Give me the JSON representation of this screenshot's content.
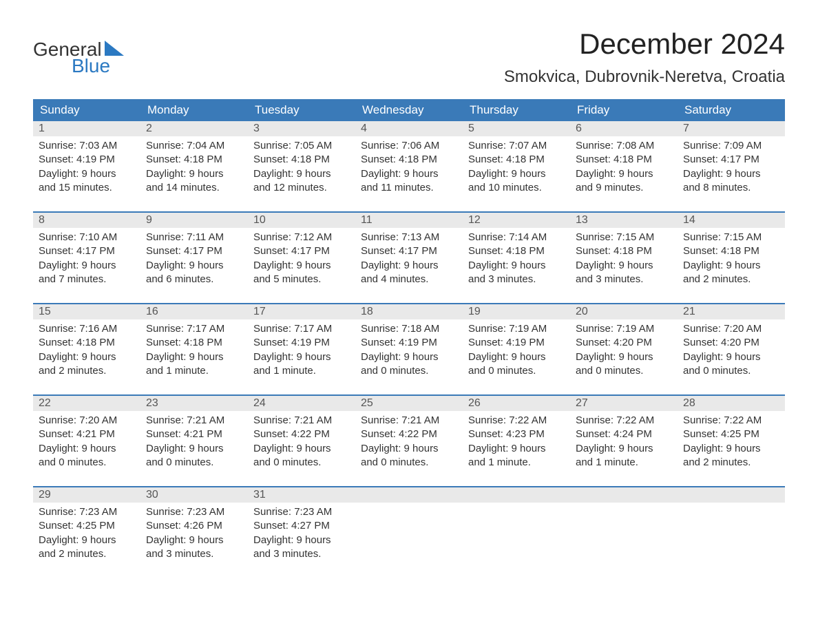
{
  "logo": {
    "word1": "General",
    "word2": "Blue"
  },
  "title": "December 2024",
  "location": "Smokvica, Dubrovnik-Neretva, Croatia",
  "colors": {
    "header_bg": "#3a7ab8",
    "header_text": "#ffffff",
    "daynum_bg": "#e9e9e9",
    "logo_blue": "#2b79c2",
    "week_border": "#3a7ab8",
    "body_text": "#333333"
  },
  "typography": {
    "title_fontsize": 42,
    "location_fontsize": 24,
    "header_fontsize": 17,
    "cell_fontsize": 15,
    "logo_fontsize": 28
  },
  "layout": {
    "columns": 7,
    "rows": 5
  },
  "day_labels": [
    "Sunday",
    "Monday",
    "Tuesday",
    "Wednesday",
    "Thursday",
    "Friday",
    "Saturday"
  ],
  "weeks": [
    [
      {
        "n": "1",
        "sunrise": "Sunrise: 7:03 AM",
        "sunset": "Sunset: 4:19 PM",
        "dl1": "Daylight: 9 hours",
        "dl2": "and 15 minutes."
      },
      {
        "n": "2",
        "sunrise": "Sunrise: 7:04 AM",
        "sunset": "Sunset: 4:18 PM",
        "dl1": "Daylight: 9 hours",
        "dl2": "and 14 minutes."
      },
      {
        "n": "3",
        "sunrise": "Sunrise: 7:05 AM",
        "sunset": "Sunset: 4:18 PM",
        "dl1": "Daylight: 9 hours",
        "dl2": "and 12 minutes."
      },
      {
        "n": "4",
        "sunrise": "Sunrise: 7:06 AM",
        "sunset": "Sunset: 4:18 PM",
        "dl1": "Daylight: 9 hours",
        "dl2": "and 11 minutes."
      },
      {
        "n": "5",
        "sunrise": "Sunrise: 7:07 AM",
        "sunset": "Sunset: 4:18 PM",
        "dl1": "Daylight: 9 hours",
        "dl2": "and 10 minutes."
      },
      {
        "n": "6",
        "sunrise": "Sunrise: 7:08 AM",
        "sunset": "Sunset: 4:18 PM",
        "dl1": "Daylight: 9 hours",
        "dl2": "and 9 minutes."
      },
      {
        "n": "7",
        "sunrise": "Sunrise: 7:09 AM",
        "sunset": "Sunset: 4:17 PM",
        "dl1": "Daylight: 9 hours",
        "dl2": "and 8 minutes."
      }
    ],
    [
      {
        "n": "8",
        "sunrise": "Sunrise: 7:10 AM",
        "sunset": "Sunset: 4:17 PM",
        "dl1": "Daylight: 9 hours",
        "dl2": "and 7 minutes."
      },
      {
        "n": "9",
        "sunrise": "Sunrise: 7:11 AM",
        "sunset": "Sunset: 4:17 PM",
        "dl1": "Daylight: 9 hours",
        "dl2": "and 6 minutes."
      },
      {
        "n": "10",
        "sunrise": "Sunrise: 7:12 AM",
        "sunset": "Sunset: 4:17 PM",
        "dl1": "Daylight: 9 hours",
        "dl2": "and 5 minutes."
      },
      {
        "n": "11",
        "sunrise": "Sunrise: 7:13 AM",
        "sunset": "Sunset: 4:17 PM",
        "dl1": "Daylight: 9 hours",
        "dl2": "and 4 minutes."
      },
      {
        "n": "12",
        "sunrise": "Sunrise: 7:14 AM",
        "sunset": "Sunset: 4:18 PM",
        "dl1": "Daylight: 9 hours",
        "dl2": "and 3 minutes."
      },
      {
        "n": "13",
        "sunrise": "Sunrise: 7:15 AM",
        "sunset": "Sunset: 4:18 PM",
        "dl1": "Daylight: 9 hours",
        "dl2": "and 3 minutes."
      },
      {
        "n": "14",
        "sunrise": "Sunrise: 7:15 AM",
        "sunset": "Sunset: 4:18 PM",
        "dl1": "Daylight: 9 hours",
        "dl2": "and 2 minutes."
      }
    ],
    [
      {
        "n": "15",
        "sunrise": "Sunrise: 7:16 AM",
        "sunset": "Sunset: 4:18 PM",
        "dl1": "Daylight: 9 hours",
        "dl2": "and 2 minutes."
      },
      {
        "n": "16",
        "sunrise": "Sunrise: 7:17 AM",
        "sunset": "Sunset: 4:18 PM",
        "dl1": "Daylight: 9 hours",
        "dl2": "and 1 minute."
      },
      {
        "n": "17",
        "sunrise": "Sunrise: 7:17 AM",
        "sunset": "Sunset: 4:19 PM",
        "dl1": "Daylight: 9 hours",
        "dl2": "and 1 minute."
      },
      {
        "n": "18",
        "sunrise": "Sunrise: 7:18 AM",
        "sunset": "Sunset: 4:19 PM",
        "dl1": "Daylight: 9 hours",
        "dl2": "and 0 minutes."
      },
      {
        "n": "19",
        "sunrise": "Sunrise: 7:19 AM",
        "sunset": "Sunset: 4:19 PM",
        "dl1": "Daylight: 9 hours",
        "dl2": "and 0 minutes."
      },
      {
        "n": "20",
        "sunrise": "Sunrise: 7:19 AM",
        "sunset": "Sunset: 4:20 PM",
        "dl1": "Daylight: 9 hours",
        "dl2": "and 0 minutes."
      },
      {
        "n": "21",
        "sunrise": "Sunrise: 7:20 AM",
        "sunset": "Sunset: 4:20 PM",
        "dl1": "Daylight: 9 hours",
        "dl2": "and 0 minutes."
      }
    ],
    [
      {
        "n": "22",
        "sunrise": "Sunrise: 7:20 AM",
        "sunset": "Sunset: 4:21 PM",
        "dl1": "Daylight: 9 hours",
        "dl2": "and 0 minutes."
      },
      {
        "n": "23",
        "sunrise": "Sunrise: 7:21 AM",
        "sunset": "Sunset: 4:21 PM",
        "dl1": "Daylight: 9 hours",
        "dl2": "and 0 minutes."
      },
      {
        "n": "24",
        "sunrise": "Sunrise: 7:21 AM",
        "sunset": "Sunset: 4:22 PM",
        "dl1": "Daylight: 9 hours",
        "dl2": "and 0 minutes."
      },
      {
        "n": "25",
        "sunrise": "Sunrise: 7:21 AM",
        "sunset": "Sunset: 4:22 PM",
        "dl1": "Daylight: 9 hours",
        "dl2": "and 0 minutes."
      },
      {
        "n": "26",
        "sunrise": "Sunrise: 7:22 AM",
        "sunset": "Sunset: 4:23 PM",
        "dl1": "Daylight: 9 hours",
        "dl2": "and 1 minute."
      },
      {
        "n": "27",
        "sunrise": "Sunrise: 7:22 AM",
        "sunset": "Sunset: 4:24 PM",
        "dl1": "Daylight: 9 hours",
        "dl2": "and 1 minute."
      },
      {
        "n": "28",
        "sunrise": "Sunrise: 7:22 AM",
        "sunset": "Sunset: 4:25 PM",
        "dl1": "Daylight: 9 hours",
        "dl2": "and 2 minutes."
      }
    ],
    [
      {
        "n": "29",
        "sunrise": "Sunrise: 7:23 AM",
        "sunset": "Sunset: 4:25 PM",
        "dl1": "Daylight: 9 hours",
        "dl2": "and 2 minutes."
      },
      {
        "n": "30",
        "sunrise": "Sunrise: 7:23 AM",
        "sunset": "Sunset: 4:26 PM",
        "dl1": "Daylight: 9 hours",
        "dl2": "and 3 minutes."
      },
      {
        "n": "31",
        "sunrise": "Sunrise: 7:23 AM",
        "sunset": "Sunset: 4:27 PM",
        "dl1": "Daylight: 9 hours",
        "dl2": "and 3 minutes."
      },
      {
        "n": "",
        "sunrise": "",
        "sunset": "",
        "dl1": "",
        "dl2": ""
      },
      {
        "n": "",
        "sunrise": "",
        "sunset": "",
        "dl1": "",
        "dl2": ""
      },
      {
        "n": "",
        "sunrise": "",
        "sunset": "",
        "dl1": "",
        "dl2": ""
      },
      {
        "n": "",
        "sunrise": "",
        "sunset": "",
        "dl1": "",
        "dl2": ""
      }
    ]
  ]
}
